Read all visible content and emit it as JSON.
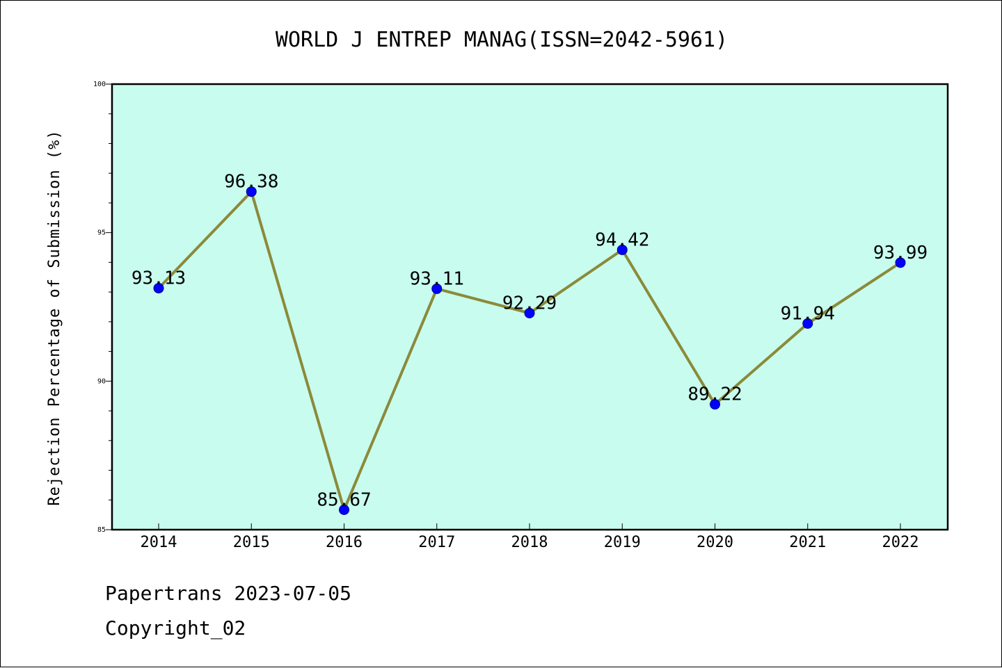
{
  "colors": {
    "plot_background": "#c8fcee",
    "line": "#8b8a3a",
    "marker": "#0000ff",
    "marker_edge": "#00008b"
  },
  "chart_data": {
    "type": "line",
    "title": "WORLD J ENTREP MANAG(ISSN=2042-5961)",
    "xlabel": "",
    "ylabel": "Rejection Percentage of Submission (%)",
    "categories": [
      "2014",
      "2015",
      "2016",
      "2017",
      "2018",
      "2019",
      "2020",
      "2021",
      "2022"
    ],
    "values": [
      93.13,
      96.38,
      85.67,
      93.11,
      92.29,
      94.42,
      89.22,
      91.94,
      93.99
    ],
    "data_labels": [
      "93.13",
      "96.38",
      "85.67",
      "93.11",
      "92.29",
      "94.42",
      "89.22",
      "91.94",
      "93.99"
    ],
    "ylim": [
      85,
      100
    ],
    "yticks": [
      85,
      90,
      95,
      100
    ],
    "ytick_labels": [
      "85",
      "90",
      "95",
      "100"
    ],
    "y_minor_step": 1,
    "grid": false,
    "legend": "none"
  },
  "footer": {
    "line1": "Papertrans 2023-07-05",
    "line2": "Copyright_02"
  }
}
